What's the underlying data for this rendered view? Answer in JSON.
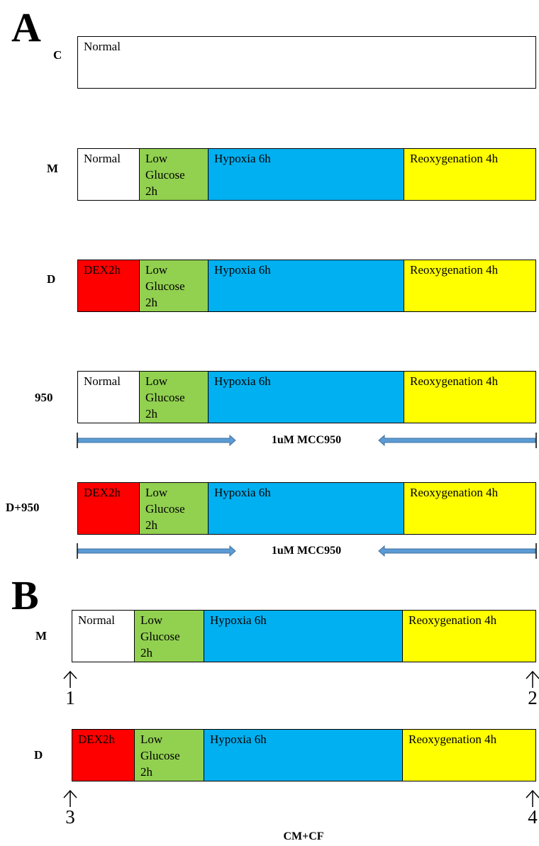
{
  "panels": [
    {
      "letter": "A",
      "rows": [
        {
          "label": "C",
          "segments": [
            {
              "text": "Normal",
              "color": "#ffffff",
              "text_color": "#000000"
            }
          ]
        },
        {
          "label": "M",
          "segments": [
            {
              "text": "Normal",
              "color": "#ffffff",
              "text_color": "#000000"
            },
            {
              "text": "Low\nGlucose\n2h",
              "color": "#92d050",
              "text_color": "#000000"
            },
            {
              "text": "Hypoxia 6h",
              "color": "#00b0f0",
              "text_color": "#000000"
            },
            {
              "text": "Reoxygenation 4h",
              "color": "#ffff00",
              "text_color": "#000000"
            }
          ]
        },
        {
          "label": "D",
          "segments": [
            {
              "text": "DEX2h",
              "color": "#ff0000",
              "text_color": "#000000"
            },
            {
              "text": "Low\nGlucose\n2h",
              "color": "#92d050",
              "text_color": "#000000"
            },
            {
              "text": "Hypoxia 6h",
              "color": "#00b0f0",
              "text_color": "#000000"
            },
            {
              "text": "Reoxygenation 4h",
              "color": "#ffff00",
              "text_color": "#000000"
            }
          ]
        },
        {
          "label": "950",
          "segments": [
            {
              "text": "Normal",
              "color": "#ffffff",
              "text_color": "#000000"
            },
            {
              "text": "Low\nGlucose\n2h",
              "color": "#92d050",
              "text_color": "#000000"
            },
            {
              "text": "Hypoxia 6h",
              "color": "#00b0f0",
              "text_color": "#000000"
            },
            {
              "text": "Reoxygenation 4h",
              "color": "#ffff00",
              "text_color": "#000000"
            }
          ],
          "drug": "1uM MCC950"
        },
        {
          "label": "D+950",
          "segments": [
            {
              "text": "DEX2h",
              "color": "#ff0000",
              "text_color": "#000000"
            },
            {
              "text": "Low\nGlucose\n2h",
              "color": "#92d050",
              "text_color": "#000000"
            },
            {
              "text": "Hypoxia 6h",
              "color": "#00b0f0",
              "text_color": "#000000"
            },
            {
              "text": "Reoxygenation 4h",
              "color": "#ffff00",
              "text_color": "#000000"
            }
          ],
          "drug": "1uM MCC950"
        }
      ]
    },
    {
      "letter": "B",
      "rows": [
        {
          "label": "M",
          "segments": [
            {
              "text": "Normal",
              "color": "#ffffff",
              "text_color": "#000000"
            },
            {
              "text": "Low\nGlucose\n2h",
              "color": "#92d050",
              "text_color": "#000000"
            },
            {
              "text": "Hypoxia 6h",
              "color": "#00b0f0",
              "text_color": "#000000"
            },
            {
              "text": "Reoxygenation 4h",
              "color": "#ffff00",
              "text_color": "#000000"
            }
          ],
          "timepoints": [
            "1",
            "2"
          ]
        },
        {
          "label": "D",
          "segments": [
            {
              "text": "DEX2h",
              "color": "#ff0000",
              "text_color": "#000000"
            },
            {
              "text": "Low\nGlucose\n2h",
              "color": "#92d050",
              "text_color": "#000000"
            },
            {
              "text": "Hypoxia 6h",
              "color": "#00b0f0",
              "text_color": "#000000"
            },
            {
              "text": "Reoxygenation 4h",
              "color": "#ffff00",
              "text_color": "#000000"
            }
          ],
          "timepoints": [
            "3",
            "4"
          ]
        }
      ],
      "footer": "CM+CF"
    }
  ],
  "colors": {
    "arrow_fill": "#5b9bd5",
    "arrow_stroke": "#41719c",
    "border": "#000000"
  }
}
